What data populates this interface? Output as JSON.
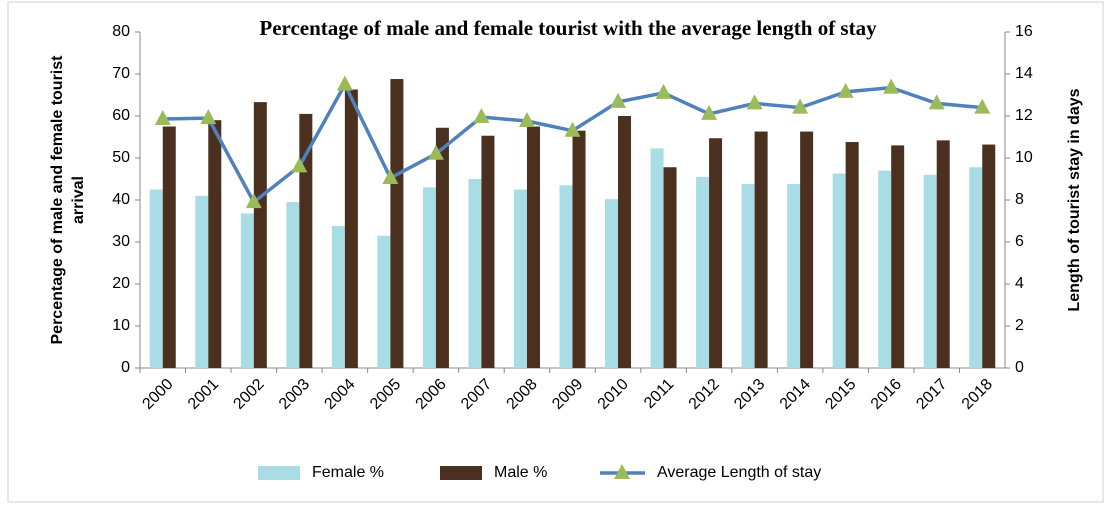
{
  "chart_data": {
    "type": "bar",
    "title": "Percentage of male and female tourist with the average length of stay",
    "y_label": "Percentage of male and female tourist arrival",
    "y2_label": "Length of tourist stay in days",
    "categories": [
      "2000",
      "2001",
      "2002",
      "2003",
      "2004",
      "2005",
      "2006",
      "2007",
      "2008",
      "2009",
      "2010",
      "2011",
      "2012",
      "2013",
      "2014",
      "2015",
      "2016",
      "2017",
      "2018"
    ],
    "series": [
      {
        "name": "Female %",
        "type": "bar",
        "color": "#a9dde6",
        "values": [
          42.5,
          41,
          36.8,
          39.5,
          33.8,
          31.5,
          43,
          45,
          42.5,
          43.5,
          40.2,
          52.3,
          45.5,
          43.8,
          43.8,
          46.3,
          47,
          46,
          47.8
        ]
      },
      {
        "name": "Male %",
        "type": "bar",
        "color": "#4b2f1f",
        "values": [
          57.5,
          59,
          63.3,
          60.5,
          66.3,
          68.8,
          57.2,
          55.3,
          57.5,
          56.5,
          60,
          47.8,
          54.7,
          56.3,
          56.3,
          53.8,
          53,
          54.2,
          53.2
        ]
      },
      {
        "name": "Average Length of stay",
        "type": "line",
        "axis": "y2",
        "color": "#4f81bd",
        "marker_color": "#9bbb59",
        "values": [
          11.86,
          11.9,
          7.9,
          9.6,
          13.5,
          9.05,
          10.2,
          11.95,
          11.76,
          11.3,
          12.67,
          13.1,
          12.1,
          12.6,
          12.4,
          13.15,
          13.35,
          12.6,
          12.4
        ]
      }
    ],
    "ylim": [
      0,
      80
    ],
    "yticks": [
      0,
      10,
      20,
      30,
      40,
      50,
      60,
      70,
      80
    ],
    "y2lim": [
      0,
      16
    ],
    "y2ticks": [
      0,
      2,
      4,
      6,
      8,
      10,
      12,
      14,
      16
    ],
    "grid": false,
    "legend": "bottom"
  }
}
